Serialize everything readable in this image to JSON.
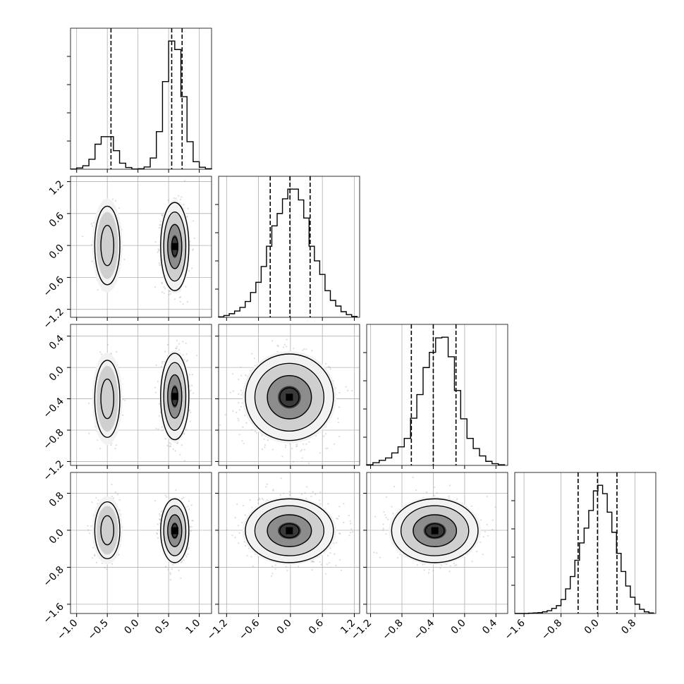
{
  "chart_data": {
    "type": "corner",
    "grid": true,
    "parameters": [
      {
        "xlim": [
          -1.1,
          1.2
        ],
        "ticks": [
          -1.0,
          -0.5,
          0.0,
          0.5,
          1.0
        ],
        "tick_labels": [
          "−1.0",
          "−0.5",
          "0.0",
          "0.5",
          "1.0"
        ],
        "quantiles": [
          -0.44,
          0.55,
          0.72
        ]
      },
      {
        "xlim": [
          -1.35,
          1.3
        ],
        "ticks": [
          -1.2,
          -0.6,
          0.0,
          0.6,
          1.2
        ],
        "tick_labels": [
          "−1.2",
          "−0.6",
          "0.0",
          "0.6",
          "1.2"
        ],
        "quantiles": [
          -0.38,
          -0.01,
          0.37
        ]
      },
      {
        "xlim": [
          -1.25,
          0.55
        ],
        "ticks": [
          -1.2,
          -0.8,
          -0.4,
          0.0,
          0.4
        ],
        "tick_labels": [
          "−1.2",
          "−0.8",
          "−0.4",
          "0.0",
          "0.4"
        ],
        "quantiles": [
          -0.68,
          -0.4,
          -0.11
        ]
      },
      {
        "xlim": [
          -1.8,
          1.25
        ],
        "ticks": [
          -1.6,
          -0.8,
          0.0,
          0.8
        ],
        "tick_labels": [
          "−1.6",
          "−0.8",
          "0.0",
          "0.8"
        ],
        "quantiles": [
          -0.43,
          -0.01,
          0.41
        ]
      }
    ],
    "histograms": [
      {
        "bin_edges": [
          -1.1,
          -1.0,
          -0.9,
          -0.8,
          -0.7,
          -0.6,
          -0.5,
          -0.4,
          -0.3,
          -0.2,
          -0.1,
          0.0,
          0.1,
          0.2,
          0.3,
          0.4,
          0.5,
          0.6,
          0.7,
          0.8,
          0.9,
          1.0,
          1.1,
          1.2
        ],
        "counts": [
          1,
          5,
          14,
          40,
          100,
          130,
          130,
          74,
          24,
          7,
          1,
          2,
          9,
          45,
          150,
          350,
          512,
          478,
          290,
          110,
          30,
          8,
          2
        ]
      },
      {
        "bin_edges": [
          -1.35,
          -1.25,
          -1.15,
          -1.05,
          -0.95,
          -0.85,
          -0.75,
          -0.65,
          -0.55,
          -0.45,
          -0.35,
          -0.25,
          -0.15,
          -0.05,
          0.05,
          0.15,
          0.25,
          0.35,
          0.45,
          0.55,
          0.65,
          0.75,
          0.85,
          0.95,
          1.05,
          1.15,
          1.25
        ],
        "counts": [
          2,
          8,
          16,
          28,
          44,
          70,
          110,
          155,
          225,
          315,
          405,
          460,
          525,
          568,
          568,
          520,
          440,
          315,
          250,
          190,
          118,
          75,
          50,
          25,
          12,
          4
        ]
      },
      {
        "bin_edges": [
          -1.25,
          -1.17,
          -1.09,
          -1.01,
          -0.93,
          -0.85,
          -0.77,
          -0.69,
          -0.61,
          -0.53,
          -0.45,
          -0.37,
          -0.29,
          -0.21,
          -0.13,
          -0.05,
          0.03,
          0.11,
          0.19,
          0.27,
          0.35,
          0.43,
          0.51
        ],
        "counts": [
          2,
          8,
          15,
          22,
          37,
          55,
          80,
          140,
          210,
          290,
          335,
          378,
          380,
          322,
          222,
          138,
          80,
          50,
          28,
          12,
          5,
          2
        ]
      },
      {
        "bin_edges": [
          -1.8,
          -1.7,
          -1.6,
          -1.5,
          -1.4,
          -1.3,
          -1.2,
          -1.1,
          -1.0,
          -0.9,
          -0.8,
          -0.7,
          -0.6,
          -0.5,
          -0.4,
          -0.3,
          -0.2,
          -0.1,
          0.0,
          0.1,
          0.2,
          0.3,
          0.4,
          0.5,
          0.6,
          0.7,
          0.8,
          0.9,
          1.0,
          1.1,
          1.2
        ],
        "counts": [
          0,
          0,
          0,
          1,
          2,
          3,
          6,
          10,
          18,
          28,
          50,
          88,
          132,
          190,
          252,
          305,
          368,
          438,
          458,
          428,
          362,
          290,
          215,
          150,
          98,
          58,
          33,
          15,
          6,
          2
        ]
      }
    ],
    "pairs": [
      {
        "row": 1,
        "col": 0,
        "modes": [
          {
            "cx": -0.5,
            "cy": 0.0,
            "sx": 0.1,
            "sy": 0.36,
            "weight": 0.25
          },
          {
            "cx": 0.6,
            "cy": -0.02,
            "sx": 0.1,
            "sy": 0.36,
            "weight": 0.75
          }
        ]
      },
      {
        "row": 2,
        "col": 0,
        "modes": [
          {
            "cx": -0.5,
            "cy": -0.4,
            "sx": 0.1,
            "sy": 0.24,
            "weight": 0.25
          },
          {
            "cx": 0.6,
            "cy": -0.37,
            "sx": 0.1,
            "sy": 0.24,
            "weight": 0.75
          }
        ]
      },
      {
        "row": 2,
        "col": 1,
        "modes": [
          {
            "cx": -0.02,
            "cy": -0.38,
            "sx": 0.36,
            "sy": 0.24,
            "weight": 1.0
          }
        ]
      },
      {
        "row": 3,
        "col": 0,
        "modes": [
          {
            "cx": -0.5,
            "cy": 0.0,
            "sx": 0.1,
            "sy": 0.3,
            "weight": 0.25
          },
          {
            "cx": 0.6,
            "cy": -0.01,
            "sx": 0.1,
            "sy": 0.3,
            "weight": 0.75
          }
        ]
      },
      {
        "row": 3,
        "col": 1,
        "modes": [
          {
            "cx": -0.02,
            "cy": -0.01,
            "sx": 0.36,
            "sy": 0.3,
            "weight": 1.0
          }
        ]
      },
      {
        "row": 3,
        "col": 2,
        "modes": [
          {
            "cx": -0.38,
            "cy": -0.01,
            "sx": 0.24,
            "sy": 0.3,
            "weight": 1.0
          }
        ]
      }
    ]
  }
}
